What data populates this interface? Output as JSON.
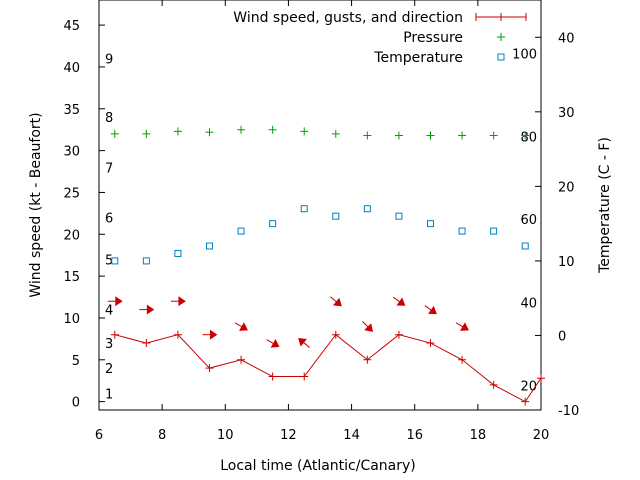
{
  "chart_data": {
    "type": "line",
    "xlabel": "Local time (Atlantic/Canary)",
    "ylabel": "Wind speed (kt - Beaufort)",
    "y2label": "Temperature (C - F)",
    "xlim": [
      6,
      20
    ],
    "ylim": [
      -1,
      48
    ],
    "y2lim": [
      -10,
      45
    ],
    "x_ticks": [
      "6",
      "8",
      "10",
      "12",
      "14",
      "16",
      "18",
      "20"
    ],
    "y_ticks": [
      "0",
      "5",
      "10",
      "15",
      "20",
      "25",
      "30",
      "35",
      "40",
      "45"
    ],
    "y2_ticks": [
      "-10",
      "0",
      "10",
      "20",
      "30",
      "40"
    ],
    "beaufort_labels": [
      {
        "label": "1",
        "y": 1
      },
      {
        "label": "2",
        "y": 4
      },
      {
        "label": "3",
        "y": 7
      },
      {
        "label": "4",
        "y": 11
      },
      {
        "label": "5",
        "y": 17
      },
      {
        "label": "6",
        "y": 22
      },
      {
        "label": "7",
        "y": 28
      },
      {
        "label": "8",
        "y": 34
      },
      {
        "label": "9",
        "y": 41
      }
    ],
    "fahrenheit_labels": [
      {
        "label": "20",
        "y2": -6.7
      },
      {
        "label": "40",
        "y2": 4.4
      },
      {
        "label": "60",
        "y2": 15.6
      },
      {
        "label": "80",
        "y2": 26.7
      },
      {
        "label": "100",
        "y2": 37.8
      }
    ],
    "legend_position": "top-right",
    "series": [
      {
        "name": "Wind speed, gusts, and direction",
        "color": "#cc0000",
        "x": [
          6.5,
          7.5,
          8.5,
          9.5,
          10.5,
          11.5,
          12.5,
          13.5,
          14.5,
          15.5,
          16.5,
          17.5,
          18.5,
          19.5,
          20
        ],
        "y": [
          8,
          7,
          8,
          4,
          5,
          3,
          3,
          8,
          5,
          8,
          7,
          5,
          2,
          0,
          2.8
        ]
      },
      {
        "name": "Pressure",
        "color": "#00a000",
        "x": [
          6.5,
          7.5,
          8.5,
          9.5,
          10.5,
          11.5,
          12.5,
          13.5,
          14.5,
          15.5,
          16.5,
          17.5,
          18.5,
          19.5
        ],
        "y": [
          32,
          32,
          32.3,
          32.2,
          32.5,
          32.5,
          32.3,
          32,
          31.8,
          31.8,
          31.8,
          31.8,
          31.8,
          31.8
        ]
      },
      {
        "name": "Temperature",
        "color": "#0080c0",
        "x": [
          6.5,
          7.5,
          8.5,
          9.5,
          10.5,
          11.5,
          12.5,
          13.5,
          14.5,
          15.5,
          16.5,
          17.5,
          18.5,
          19.5
        ],
        "y2": [
          10,
          10,
          11,
          12,
          14,
          15,
          17,
          16,
          17,
          16,
          15,
          14,
          14,
          12
        ]
      }
    ],
    "wind_direction_arrows": [
      {
        "x": 6.5,
        "y": 12,
        "dir_deg": 0
      },
      {
        "x": 7.5,
        "y": 11,
        "dir_deg": 0
      },
      {
        "x": 8.5,
        "y": 12,
        "dir_deg": 0
      },
      {
        "x": 9.5,
        "y": 8,
        "dir_deg": 0
      },
      {
        "x": 10.5,
        "y": 9,
        "dir_deg": 30
      },
      {
        "x": 11.5,
        "y": 7,
        "dir_deg": 30
      },
      {
        "x": 12.5,
        "y": 7,
        "dir_deg": 220
      },
      {
        "x": 13.5,
        "y": 12,
        "dir_deg": 40
      },
      {
        "x": 14.5,
        "y": 9,
        "dir_deg": 45
      },
      {
        "x": 15.5,
        "y": 12,
        "dir_deg": 35
      },
      {
        "x": 16.5,
        "y": 11,
        "dir_deg": 35
      },
      {
        "x": 17.5,
        "y": 9,
        "dir_deg": 30
      }
    ]
  }
}
